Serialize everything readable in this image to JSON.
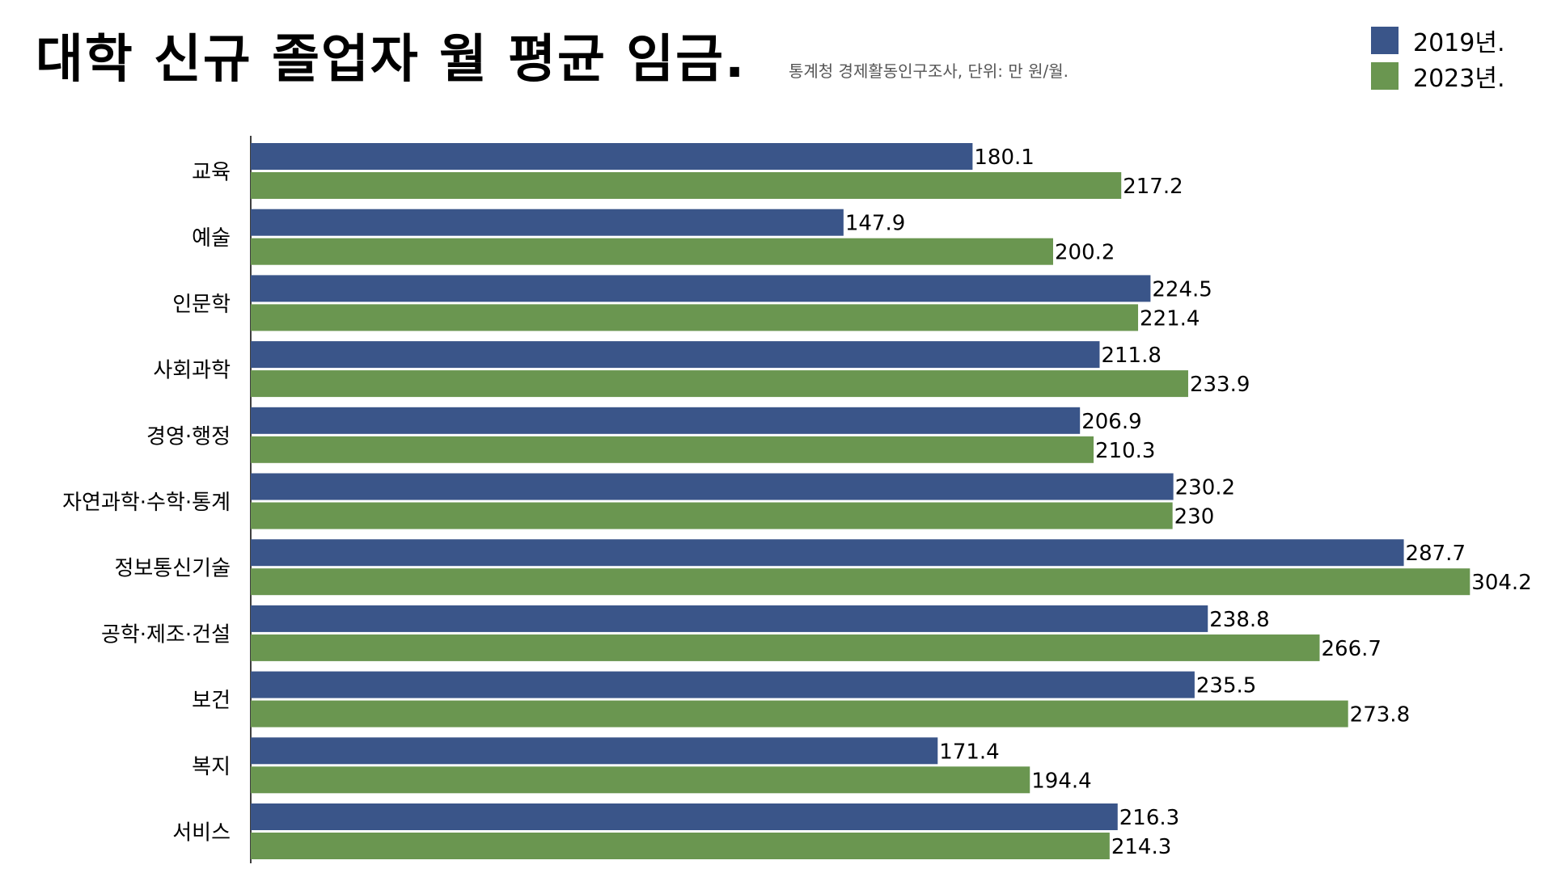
{
  "title": "대학 신규 졸업자 월 평균 임금.",
  "subtitle": "통계청 경제활동인구조사, 단위: 만 원/월.",
  "colors": {
    "series_2019": "#3a5589",
    "series_2023": "#6a9650",
    "axis": "#000000"
  },
  "chart_data": {
    "type": "bar",
    "orientation": "horizontal",
    "categories": [
      "교육",
      "예술",
      "인문학",
      "사회과학",
      "경영·행정",
      "자연과학·수학·통계",
      "정보통신기술",
      "공학·제조·건설",
      "보건",
      "복지",
      "서비스"
    ],
    "series": [
      {
        "name": "2019년.",
        "values": [
          180.1,
          147.9,
          224.5,
          211.8,
          206.9,
          230.2,
          287.7,
          238.8,
          235.5,
          171.4,
          216.3
        ]
      },
      {
        "name": "2023년.",
        "values": [
          217.2,
          200.2,
          221.4,
          233.9,
          210.3,
          230,
          304.2,
          266.7,
          273.8,
          194.4,
          214.3
        ]
      }
    ],
    "xlim": [
      0,
      330
    ],
    "legend_position": "top-right",
    "grid": false
  }
}
